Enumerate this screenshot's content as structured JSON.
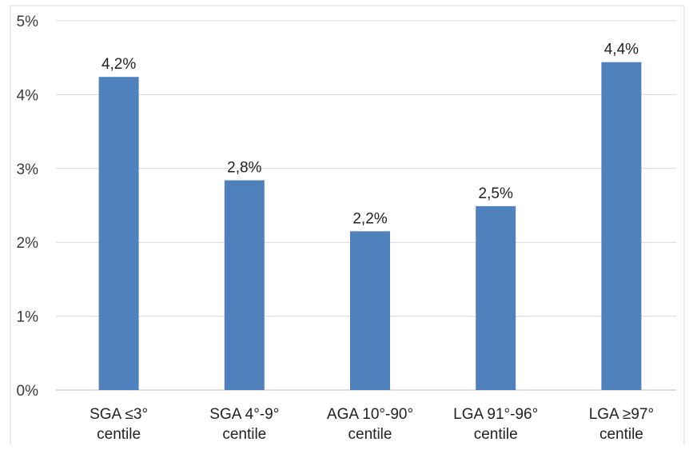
{
  "chart_data": {
    "type": "bar",
    "title": "",
    "xlabel": "",
    "ylabel": "",
    "categories": [
      [
        "SGA ≤3°",
        "centile"
      ],
      [
        "SGA 4°-9°",
        "centile"
      ],
      [
        "AGA 10°-90°",
        "centile"
      ],
      [
        "LGA 91°-96°",
        "centile"
      ],
      [
        "LGA ≥97°",
        "centile"
      ]
    ],
    "values": [
      4.24,
      2.84,
      2.15,
      2.49,
      4.44
    ],
    "data_labels": [
      "4,2%",
      "2,8%",
      "2,2%",
      "2,5%",
      "4,4%"
    ],
    "ylim": [
      0,
      5
    ],
    "yticks": [
      0,
      1,
      2,
      3,
      4,
      5
    ],
    "ytick_labels": [
      "0%",
      "1%",
      "2%",
      "3%",
      "4%",
      "5%"
    ],
    "grid": true,
    "legend": "none",
    "colors": {
      "bar": "#4f81bd",
      "grid": "#d9d9d9",
      "axis": "#bfbfbf",
      "frame": "#d9d9d9"
    }
  }
}
